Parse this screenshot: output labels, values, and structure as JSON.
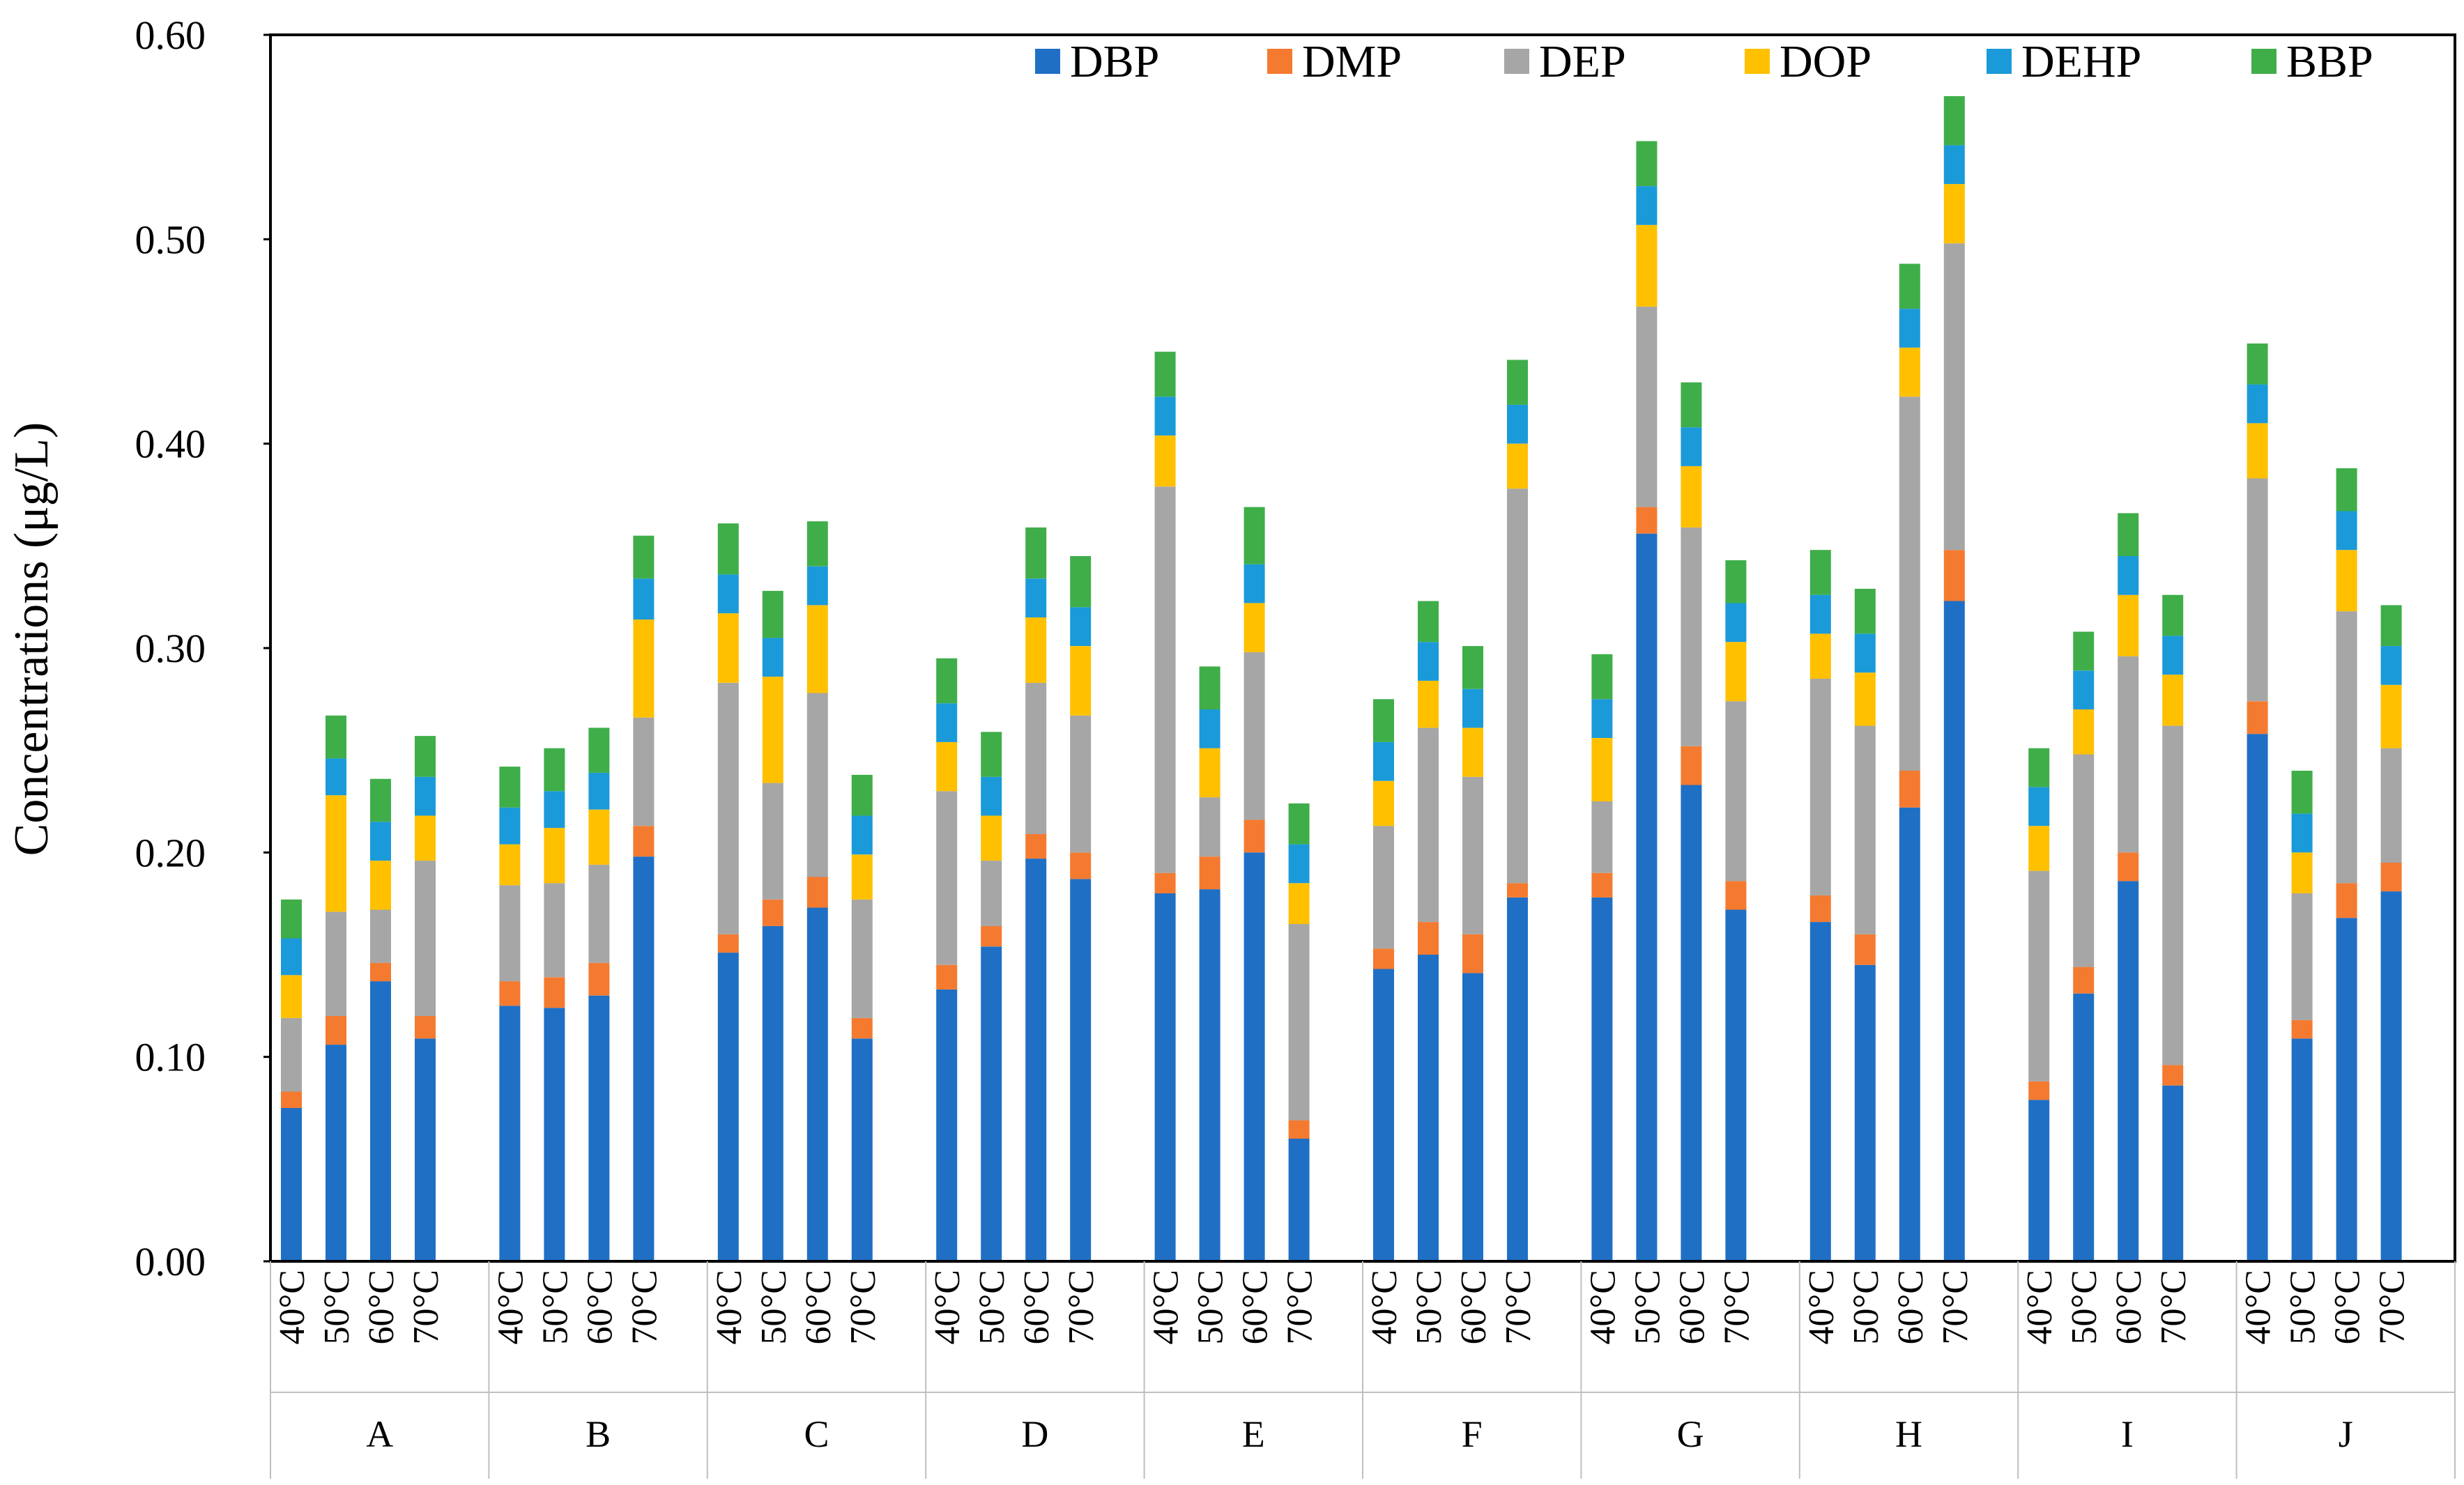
{
  "chart_data": {
    "type": "bar",
    "stacked": true,
    "title": "",
    "xlabel": "",
    "ylabel": "Concentrations (μg/L)",
    "ylim": [
      0,
      0.6
    ],
    "yticks": [
      "0.00",
      "0.10",
      "0.20",
      "0.30",
      "0.40",
      "0.50",
      "0.60"
    ],
    "grid": false,
    "legend_position": "top-right",
    "groups": [
      "A",
      "B",
      "C",
      "D",
      "E",
      "F",
      "G",
      "H",
      "I",
      "J"
    ],
    "temperatures": [
      "40°C",
      "50°C",
      "60°C",
      "70°C"
    ],
    "colors": {
      "DBP": "#1f6fc5",
      "DMP": "#f47a30",
      "DEP": "#a6a6a6",
      "DOP": "#ffc000",
      "DEHP": "#1b9ad9",
      "BBP": "#3fae49"
    },
    "series": [
      {
        "name": "DBP",
        "values": [
          0.075,
          0.106,
          0.137,
          0.109,
          0.125,
          0.124,
          0.13,
          0.198,
          0.151,
          0.164,
          0.173,
          0.109,
          0.133,
          0.154,
          0.197,
          0.187,
          0.18,
          0.182,
          0.2,
          0.06,
          0.143,
          0.15,
          0.141,
          0.178,
          0.178,
          0.356,
          0.233,
          0.172,
          0.166,
          0.145,
          0.222,
          0.323,
          0.079,
          0.131,
          0.186,
          0.086,
          0.258,
          0.109,
          0.168,
          0.181
        ]
      },
      {
        "name": "DMP",
        "values": [
          0.008,
          0.014,
          0.009,
          0.011,
          0.012,
          0.015,
          0.016,
          0.015,
          0.009,
          0.013,
          0.015,
          0.01,
          0.012,
          0.01,
          0.012,
          0.013,
          0.01,
          0.016,
          0.016,
          0.009,
          0.01,
          0.016,
          0.019,
          0.007,
          0.012,
          0.013,
          0.019,
          0.014,
          0.013,
          0.015,
          0.018,
          0.025,
          0.009,
          0.013,
          0.014,
          0.01,
          0.016,
          0.009,
          0.017,
          0.014
        ]
      },
      {
        "name": "DEP",
        "values": [
          0.036,
          0.051,
          0.026,
          0.076,
          0.047,
          0.046,
          0.048,
          0.053,
          0.123,
          0.057,
          0.09,
          0.058,
          0.085,
          0.032,
          0.074,
          0.067,
          0.189,
          0.029,
          0.082,
          0.096,
          0.06,
          0.095,
          0.077,
          0.193,
          0.035,
          0.098,
          0.107,
          0.088,
          0.106,
          0.102,
          0.183,
          0.15,
          0.103,
          0.104,
          0.096,
          0.166,
          0.109,
          0.062,
          0.133,
          0.056
        ]
      },
      {
        "name": "DOP",
        "values": [
          0.021,
          0.057,
          0.024,
          0.022,
          0.02,
          0.027,
          0.027,
          0.048,
          0.034,
          0.052,
          0.043,
          0.022,
          0.024,
          0.022,
          0.032,
          0.034,
          0.025,
          0.024,
          0.024,
          0.02,
          0.022,
          0.023,
          0.024,
          0.022,
          0.031,
          0.04,
          0.03,
          0.029,
          0.022,
          0.026,
          0.024,
          0.029,
          0.022,
          0.022,
          0.03,
          0.025,
          0.027,
          0.02,
          0.03,
          0.031
        ]
      },
      {
        "name": "DEHP",
        "values": [
          0.018,
          0.018,
          0.019,
          0.019,
          0.018,
          0.018,
          0.018,
          0.02,
          0.019,
          0.019,
          0.019,
          0.019,
          0.019,
          0.019,
          0.019,
          0.019,
          0.019,
          0.019,
          0.019,
          0.019,
          0.019,
          0.019,
          0.019,
          0.019,
          0.019,
          0.019,
          0.019,
          0.019,
          0.019,
          0.019,
          0.019,
          0.019,
          0.019,
          0.019,
          0.019,
          0.019,
          0.019,
          0.019,
          0.019,
          0.019
        ]
      },
      {
        "name": "BBP",
        "values": [
          0.019,
          0.021,
          0.021,
          0.02,
          0.02,
          0.021,
          0.022,
          0.021,
          0.025,
          0.023,
          0.022,
          0.02,
          0.022,
          0.022,
          0.025,
          0.025,
          0.022,
          0.021,
          0.028,
          0.02,
          0.021,
          0.02,
          0.021,
          0.022,
          0.022,
          0.022,
          0.022,
          0.021,
          0.022,
          0.022,
          0.022,
          0.024,
          0.019,
          0.019,
          0.021,
          0.02,
          0.02,
          0.021,
          0.021,
          0.02
        ]
      }
    ]
  }
}
